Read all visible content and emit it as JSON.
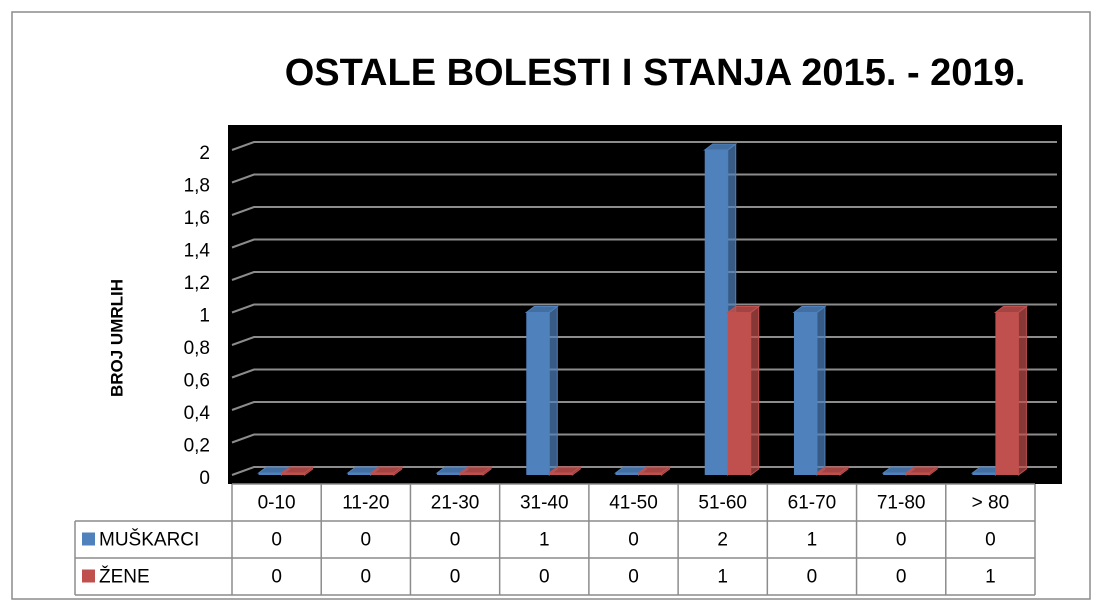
{
  "chart_data": {
    "type": "bar3d",
    "title": "OSTALE BOLESTI I STANJA  2015. - 2019.",
    "y_label": "BROJ UMRLIH",
    "categories": [
      "0-10",
      "11-20",
      "21-30",
      "31-40",
      "41-50",
      "51-60",
      "61-70",
      "71-80",
      "> 80"
    ],
    "series": [
      {
        "name": "MUŠKARCI",
        "color": "#4f81bd",
        "values": [
          0,
          0,
          0,
          1,
          0,
          2,
          1,
          0,
          0
        ]
      },
      {
        "name": "ŽENE",
        "color": "#c0504d",
        "values": [
          0,
          0,
          0,
          0,
          0,
          1,
          0,
          0,
          1
        ]
      }
    ],
    "ylim": [
      0,
      2
    ],
    "yticks": [
      0,
      {
        "value": 0.2,
        "label": "0,2"
      },
      {
        "value": 0.4,
        "label": "0,4"
      },
      {
        "value": 0.6,
        "label": "0,6"
      },
      {
        "value": 0.8,
        "label": "0,8"
      },
      1,
      {
        "value": 1.2,
        "label": "1,2"
      },
      {
        "value": 1.4,
        "label": "1,4"
      },
      {
        "value": 1.6,
        "label": "1,6"
      },
      {
        "value": 1.8,
        "label": "1,8"
      },
      2
    ],
    "grid": true,
    "data_table": true
  }
}
